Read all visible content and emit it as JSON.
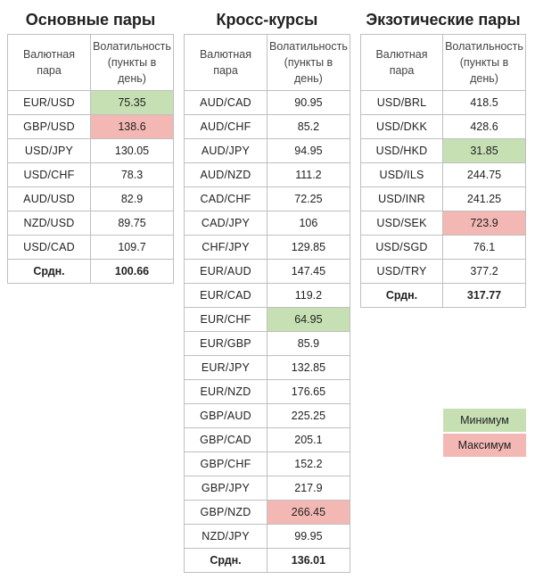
{
  "header": {
    "pair_col": "Валютная пара",
    "vol_col": "Волатильность (пункты в день)"
  },
  "tables": [
    {
      "title": "Основные пары",
      "rows": [
        {
          "pair": "EUR/USD",
          "vol": "75.35",
          "mark": "min"
        },
        {
          "pair": "GBP/USD",
          "vol": "138.6",
          "mark": "max"
        },
        {
          "pair": "USD/JPY",
          "vol": "130.05",
          "mark": ""
        },
        {
          "pair": "USD/CHF",
          "vol": "78.3",
          "mark": ""
        },
        {
          "pair": "AUD/USD",
          "vol": "82.9",
          "mark": ""
        },
        {
          "pair": "NZD/USD",
          "vol": "89.75",
          "mark": ""
        },
        {
          "pair": "USD/CAD",
          "vol": "109.7",
          "mark": ""
        }
      ],
      "avg_label": "Срдн.",
      "avg_value": "100.66"
    },
    {
      "title": "Кросс-курсы",
      "rows": [
        {
          "pair": "AUD/CAD",
          "vol": "90.95",
          "mark": ""
        },
        {
          "pair": "AUD/CHF",
          "vol": "85.2",
          "mark": ""
        },
        {
          "pair": "AUD/JPY",
          "vol": "94.95",
          "mark": ""
        },
        {
          "pair": "AUD/NZD",
          "vol": "111.2",
          "mark": ""
        },
        {
          "pair": "CAD/CHF",
          "vol": "72.25",
          "mark": ""
        },
        {
          "pair": "CAD/JPY",
          "vol": "106",
          "mark": ""
        },
        {
          "pair": "CHF/JPY",
          "vol": "129.85",
          "mark": ""
        },
        {
          "pair": "EUR/AUD",
          "vol": "147.45",
          "mark": ""
        },
        {
          "pair": "EUR/CAD",
          "vol": "119.2",
          "mark": ""
        },
        {
          "pair": "EUR/CHF",
          "vol": "64.95",
          "mark": "min"
        },
        {
          "pair": "EUR/GBP",
          "vol": "85.9",
          "mark": ""
        },
        {
          "pair": "EUR/JPY",
          "vol": "132.85",
          "mark": ""
        },
        {
          "pair": "EUR/NZD",
          "vol": "176.65",
          "mark": ""
        },
        {
          "pair": "GBP/AUD",
          "vol": "225.25",
          "mark": ""
        },
        {
          "pair": "GBP/CAD",
          "vol": "205.1",
          "mark": ""
        },
        {
          "pair": "GBP/CHF",
          "vol": "152.2",
          "mark": ""
        },
        {
          "pair": "GBP/JPY",
          "vol": "217.9",
          "mark": ""
        },
        {
          "pair": "GBP/NZD",
          "vol": "266.45",
          "mark": "max"
        },
        {
          "pair": "NZD/JPY",
          "vol": "99.95",
          "mark": ""
        }
      ],
      "avg_label": "Срдн.",
      "avg_value": "136.01"
    },
    {
      "title": "Экзотические пары",
      "rows": [
        {
          "pair": "USD/BRL",
          "vol": "418.5",
          "mark": ""
        },
        {
          "pair": "USD/DKK",
          "vol": "428.6",
          "mark": ""
        },
        {
          "pair": "USD/HKD",
          "vol": "31.85",
          "mark": "min"
        },
        {
          "pair": "USD/ILS",
          "vol": "244.75",
          "mark": ""
        },
        {
          "pair": "USD/INR",
          "vol": "241.25",
          "mark": ""
        },
        {
          "pair": "USD/SEK",
          "vol": "723.9",
          "mark": "max"
        },
        {
          "pair": "USD/SGD",
          "vol": "76.1",
          "mark": ""
        },
        {
          "pair": "USD/TRY",
          "vol": "377.2",
          "mark": ""
        }
      ],
      "avg_label": "Срдн.",
      "avg_value": "317.77"
    }
  ],
  "legend": {
    "min_label": "Минимум",
    "max_label": "Максимум",
    "min_color": "#c6e0b4",
    "max_color": "#f4b8b4"
  }
}
